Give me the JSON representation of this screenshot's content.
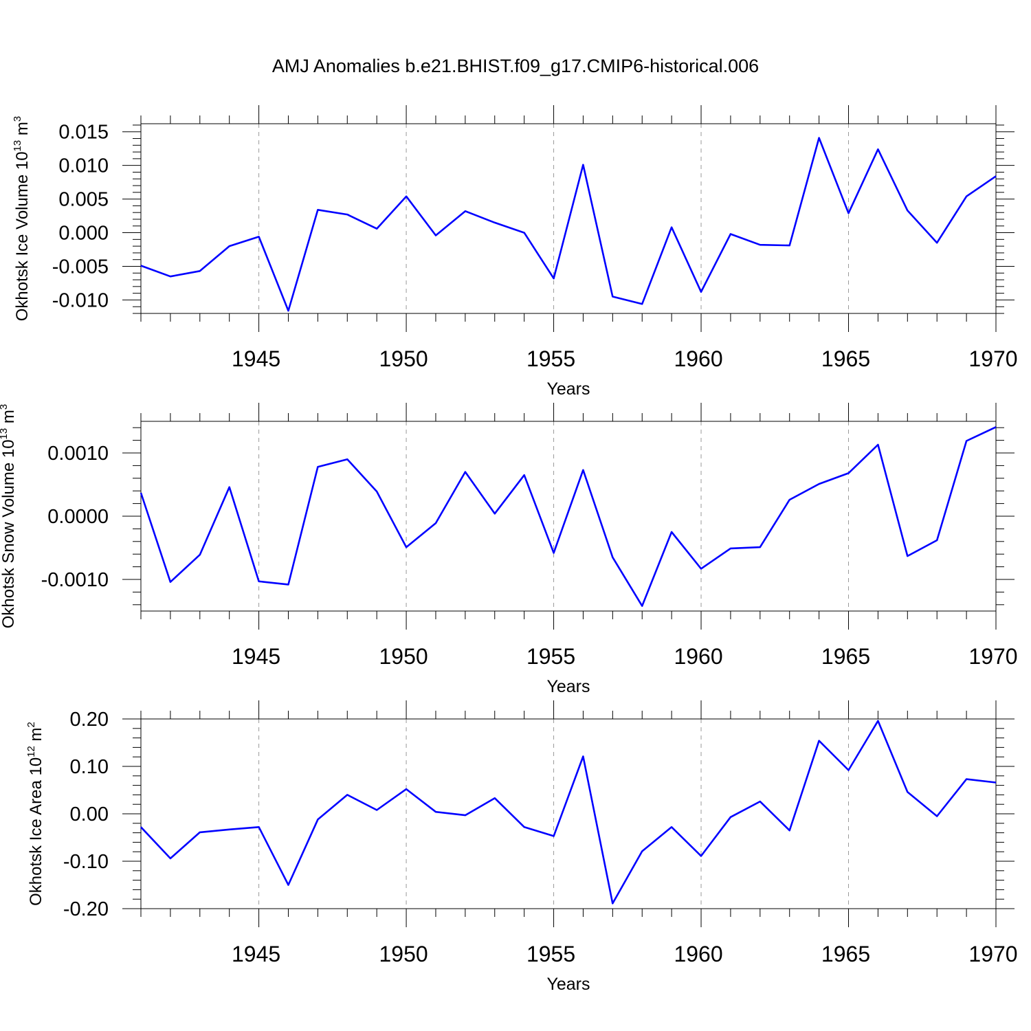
{
  "title": "AMJ Anomalies b.e21.BHIST.f09_g17.CMIP6-historical.006",
  "colors": {
    "series": "#0000ff",
    "frame": "#000000",
    "grid": "#999999"
  },
  "chart_data": [
    {
      "type": "line",
      "ylabel_main": "Okhotsk Ice Volume 10",
      "ylabel_sup": "13",
      "ylabel_unit": " m",
      "ylabel_unit_sup": "3",
      "xlabel": "Years",
      "xlim": [
        1941,
        1970
      ],
      "ylim": [
        -0.012,
        0.0162
      ],
      "yticks": [
        -0.01,
        -0.005,
        0.0,
        0.005,
        0.01,
        0.015
      ],
      "ytick_labels": [
        "-0.010",
        "-0.005",
        "0.000",
        "0.005",
        "0.010",
        "0.015"
      ],
      "yminor_step": 0.001,
      "xticks": [
        1945,
        1950,
        1955,
        1960,
        1965,
        1970
      ],
      "xtick_labels": [
        "1945",
        "1950",
        "1955",
        "1960",
        "1965",
        "1970"
      ],
      "x": [
        1941,
        1942,
        1943,
        1944,
        1945,
        1946,
        1947,
        1948,
        1949,
        1950,
        1951,
        1952,
        1953,
        1954,
        1955,
        1956,
        1957,
        1958,
        1959,
        1960,
        1961,
        1962,
        1963,
        1964,
        1965,
        1966,
        1967,
        1968,
        1969,
        1970
      ],
      "values": [
        -0.0049,
        -0.0065,
        -0.0057,
        -0.002,
        -0.0006,
        -0.0116,
        0.0034,
        0.0027,
        0.0006,
        0.0054,
        -0.0004,
        0.0032,
        0.0015,
        0.0,
        -0.0068,
        0.0101,
        -0.0095,
        -0.0106,
        0.0008,
        -0.0088,
        -0.0002,
        -0.0018,
        -0.0019,
        0.0141,
        0.0029,
        0.0124,
        0.0033,
        -0.0015,
        0.0054,
        0.0084
      ]
    },
    {
      "type": "line",
      "ylabel_main": "Okhotsk Snow Volume 10",
      "ylabel_sup": "13",
      "ylabel_unit": " m",
      "ylabel_unit_sup": "3",
      "xlabel": "Years",
      "xlim": [
        1941,
        1970
      ],
      "ylim": [
        -0.0015,
        0.0015
      ],
      "yticks": [
        -0.001,
        0.0,
        0.001
      ],
      "ytick_labels": [
        "-0.0010",
        "0.0000",
        "0.0010"
      ],
      "yminor_step": 0.0002,
      "xticks": [
        1945,
        1950,
        1955,
        1960,
        1965,
        1970
      ],
      "xtick_labels": [
        "1945",
        "1950",
        "1955",
        "1960",
        "1965",
        "1970"
      ],
      "x": [
        1941,
        1942,
        1943,
        1944,
        1945,
        1946,
        1947,
        1948,
        1949,
        1950,
        1951,
        1952,
        1953,
        1954,
        1955,
        1956,
        1957,
        1958,
        1959,
        1960,
        1961,
        1962,
        1963,
        1964,
        1965,
        1966,
        1967,
        1968,
        1969,
        1970
      ],
      "values": [
        0.00037,
        -0.00104,
        -0.00061,
        0.00046,
        -0.00103,
        -0.00108,
        0.00078,
        0.0009,
        0.00039,
        -0.00049,
        -0.00011,
        0.0007,
        4e-05,
        0.00065,
        -0.00058,
        0.00073,
        -0.00065,
        -0.00142,
        -0.00025,
        -0.00083,
        -0.00051,
        -0.00049,
        0.00026,
        0.00051,
        0.00068,
        0.00113,
        -0.00063,
        -0.00038,
        0.00119,
        0.00141
      ]
    },
    {
      "type": "line",
      "ylabel_main": "Okhotsk Ice Area 10",
      "ylabel_sup": "12",
      "ylabel_unit": " m",
      "ylabel_unit_sup": "2",
      "xlabel": "Years",
      "xlim": [
        1941,
        1970
      ],
      "ylim": [
        -0.2,
        0.2
      ],
      "yticks": [
        -0.2,
        -0.1,
        0.0,
        0.1,
        0.2
      ],
      "ytick_labels": [
        "-0.20",
        "-0.10",
        "0.00",
        "0.10",
        "0.20"
      ],
      "yminor_step": 0.02,
      "xticks": [
        1945,
        1950,
        1955,
        1960,
        1965,
        1970
      ],
      "xtick_labels": [
        "1945",
        "1950",
        "1955",
        "1960",
        "1965",
        "1970"
      ],
      "x": [
        1941,
        1942,
        1943,
        1944,
        1945,
        1946,
        1947,
        1948,
        1949,
        1950,
        1951,
        1952,
        1953,
        1954,
        1955,
        1956,
        1957,
        1958,
        1959,
        1960,
        1961,
        1962,
        1963,
        1964,
        1965,
        1966,
        1967,
        1968,
        1969,
        1970
      ],
      "values": [
        -0.028,
        -0.094,
        -0.039,
        -0.033,
        -0.028,
        -0.15,
        -0.012,
        0.04,
        0.008,
        0.052,
        0.004,
        -0.003,
        0.033,
        -0.028,
        -0.047,
        0.121,
        -0.189,
        -0.079,
        -0.028,
        -0.089,
        -0.007,
        0.026,
        -0.035,
        0.154,
        0.092,
        0.196,
        0.046,
        -0.005,
        0.073,
        0.066
      ]
    }
  ]
}
